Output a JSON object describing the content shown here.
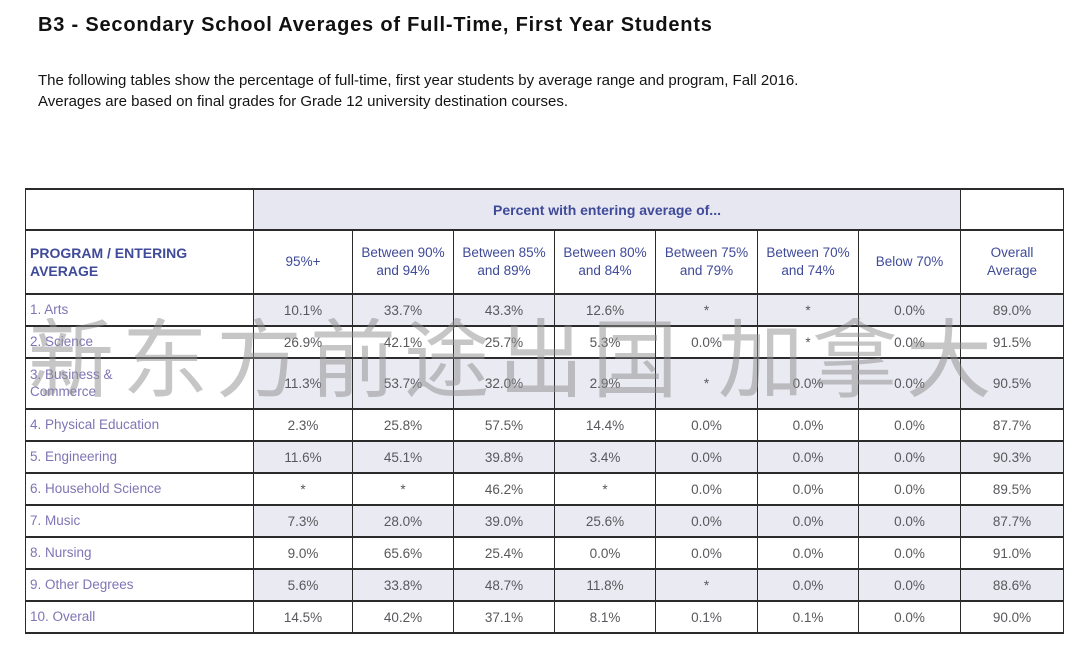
{
  "page": {
    "title": "B3 - Secondary School Averages of Full-Time, First Year Students",
    "description_line1": "The following tables show the percentage of full-time, first year students by average range and program, Fall 2016.",
    "description_line2": "Averages are based on final grades for Grade 12 university destination courses."
  },
  "watermark": {
    "text": "新东方前途出国 加拿大"
  },
  "table": {
    "band_header": "Percent with entering average of...",
    "row_header": "PROGRAM / ENTERING AVERAGE",
    "column_headers": [
      "95%+",
      "Between 90% and 94%",
      "Between 85% and 89%",
      "Between 80% and 84%",
      "Between 75% and 79%",
      "Between 70% and 74%",
      "Below 70%",
      "Overall Average"
    ],
    "rows": [
      {
        "program": "1. Arts",
        "values": [
          "10.1%",
          "33.7%",
          "43.3%",
          "12.6%",
          "*",
          "*",
          "0.0%",
          "89.0%"
        ]
      },
      {
        "program": "2. Science",
        "values": [
          "26.9%",
          "42.1%",
          "25.7%",
          "5.3%",
          "0.0%",
          "*",
          "0.0%",
          "91.5%"
        ]
      },
      {
        "program": "3. Business & Commerce",
        "values": [
          "11.3%",
          "53.7%",
          "32.0%",
          "2.9%",
          "*",
          "0.0%",
          "0.0%",
          "90.5%"
        ]
      },
      {
        "program": "4. Physical Education",
        "values": [
          "2.3%",
          "25.8%",
          "57.5%",
          "14.4%",
          "0.0%",
          "0.0%",
          "0.0%",
          "87.7%"
        ]
      },
      {
        "program": "5. Engineering",
        "values": [
          "11.6%",
          "45.1%",
          "39.8%",
          "3.4%",
          "0.0%",
          "0.0%",
          "0.0%",
          "90.3%"
        ]
      },
      {
        "program": "6. Household Science",
        "values": [
          "*",
          "*",
          "46.2%",
          "*",
          "0.0%",
          "0.0%",
          "0.0%",
          "89.5%"
        ]
      },
      {
        "program": "7. Music",
        "values": [
          "7.3%",
          "28.0%",
          "39.0%",
          "25.6%",
          "0.0%",
          "0.0%",
          "0.0%",
          "87.7%"
        ]
      },
      {
        "program": "8. Nursing",
        "values": [
          "9.0%",
          "65.6%",
          "25.4%",
          "0.0%",
          "0.0%",
          "0.0%",
          "0.0%",
          "91.0%"
        ]
      },
      {
        "program": "9. Other Degrees",
        "values": [
          "5.6%",
          "33.8%",
          "48.7%",
          "11.8%",
          "*",
          "0.0%",
          "0.0%",
          "88.6%"
        ]
      },
      {
        "program": "10. Overall",
        "values": [
          "14.5%",
          "40.2%",
          "37.1%",
          "8.1%",
          "0.1%",
          "0.1%",
          "0.0%",
          "90.0%"
        ]
      }
    ]
  },
  "colors": {
    "header_text": "#3f4a99",
    "program_text": "#8174b5",
    "value_text": "#58585c",
    "stripe_bg": "#eaeaf2",
    "band_bg": "#e7e7f1",
    "border": "#2b2b2b",
    "border_light": "#c4c4d2",
    "watermark_gray": "#8e8e8e"
  }
}
